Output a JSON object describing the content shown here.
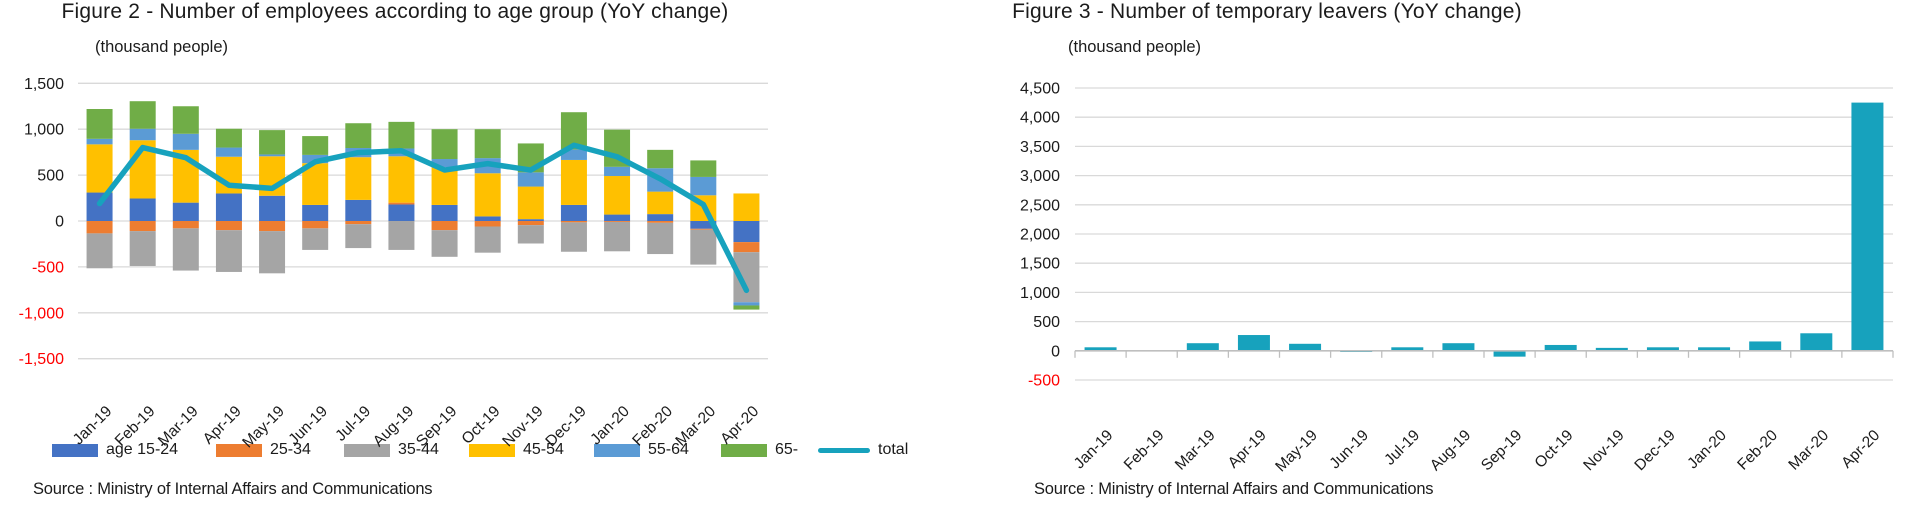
{
  "chart_data": [
    {
      "id": "figure2",
      "type": "stacked-bar-with-line",
      "title": "Figure 2 - Number of  employees according to age group (YoY change)",
      "units_label": "(thousand people)",
      "source": "Source : Ministry of Internal Affairs and Communications",
      "categories": [
        "Jan-19",
        "Feb-19",
        "Mar-19",
        "Apr-19",
        "May-19",
        "Jun-19",
        "Jul-19",
        "Aug-19",
        "Sep-19",
        "Oct-19",
        "Nov-19",
        "Dec-19",
        "Jan-20",
        "Feb-20",
        "Mar-20",
        "Apr-20"
      ],
      "series": [
        {
          "name": "age 15-24",
          "color": "#4472C4",
          "values": [
            310,
            245,
            200,
            300,
            275,
            175,
            230,
            180,
            175,
            50,
            20,
            175,
            70,
            75,
            -85,
            -230
          ]
        },
        {
          "name": "25-34",
          "color": "#ED7D31",
          "values": [
            -135,
            -110,
            -80,
            -100,
            -110,
            -80,
            -35,
            20,
            -100,
            -60,
            -45,
            -15,
            -10,
            -20,
            -10,
            -110
          ]
        },
        {
          "name": "35-44",
          "color": "#A5A5A5",
          "values": [
            -380,
            -380,
            -460,
            -455,
            -460,
            -235,
            -260,
            -315,
            -290,
            -285,
            -200,
            -320,
            -320,
            -340,
            -380,
            -545
          ]
        },
        {
          "name": "45-54",
          "color": "#FFC000",
          "values": [
            525,
            635,
            575,
            400,
            430,
            455,
            465,
            505,
            410,
            470,
            355,
            490,
            420,
            245,
            280,
            300
          ]
        },
        {
          "name": "55-64",
          "color": "#5B9BD5",
          "values": [
            60,
            125,
            175,
            100,
            20,
            90,
            100,
            85,
            90,
            165,
            155,
            115,
            100,
            255,
            200,
            -35
          ]
        },
        {
          "name": "65-",
          "color": "#70AD47",
          "values": [
            325,
            300,
            300,
            205,
            265,
            205,
            270,
            290,
            325,
            315,
            315,
            405,
            405,
            200,
            180,
            -45
          ]
        }
      ],
      "line_series": {
        "name": "total",
        "color": "#17A2BD",
        "values": [
          190,
          800,
          690,
          390,
          355,
          645,
          745,
          765,
          555,
          625,
          555,
          825,
          700,
          460,
          180,
          -755
        ]
      },
      "ylim": [
        -1500,
        1500
      ],
      "ytick_step": 500,
      "y_tick_labels": [
        "1,500",
        "1,000",
        "500",
        "0",
        "-500",
        "-1,000",
        "-1,500"
      ],
      "negative_tick_color": "#FF0000",
      "grid": true,
      "legend_position": "bottom",
      "legend": [
        {
          "label": "age 15-24",
          "color": "#4472C4",
          "type": "box"
        },
        {
          "label": "25-34",
          "color": "#ED7D31",
          "type": "box"
        },
        {
          "label": "35-44",
          "color": "#A5A5A5",
          "type": "box"
        },
        {
          "label": "45-54",
          "color": "#FFC000",
          "type": "box"
        },
        {
          "label": "55-64",
          "color": "#5B9BD5",
          "type": "box"
        },
        {
          "label": "65-",
          "color": "#70AD47",
          "type": "box"
        },
        {
          "label": "total",
          "color": "#17A2BD",
          "type": "line"
        }
      ]
    },
    {
      "id": "figure3",
      "type": "bar",
      "title": "Figure 3 - Number of temporary  leavers (YoY change)",
      "units_label": "(thousand people)",
      "source": "Source : Ministry of Internal Affairs and Communications",
      "categories": [
        "Jan-19",
        "Feb-19",
        "Mar-19",
        "Apr-19",
        "May-19",
        "Jun-19",
        "Jul-19",
        "Aug-19",
        "Sep-19",
        "Oct-19",
        "Nov-19",
        "Dec-19",
        "Jan-20",
        "Feb-20",
        "Mar-20",
        "Apr-20"
      ],
      "values": [
        60,
        10,
        130,
        270,
        120,
        -20,
        60,
        130,
        -100,
        100,
        50,
        60,
        60,
        160,
        300,
        4250
      ],
      "bar_color": "#17A2BD",
      "ylim": [
        -500,
        4500
      ],
      "ytick_step": 500,
      "y_tick_labels": [
        "4,500",
        "4,000",
        "3,500",
        "3,000",
        "2,500",
        "2,000",
        "1,500",
        "1,000",
        "500",
        "0",
        "-500"
      ],
      "negative_tick_color": "#FF0000",
      "grid": true,
      "legend_position": "none"
    }
  ],
  "colors": {
    "grid_line": "#D9D9D9",
    "axis_line": "#BFBFBF",
    "text": "#1b1b1b",
    "negative_tick": "#FF0000",
    "background": "#FFFFFF"
  }
}
